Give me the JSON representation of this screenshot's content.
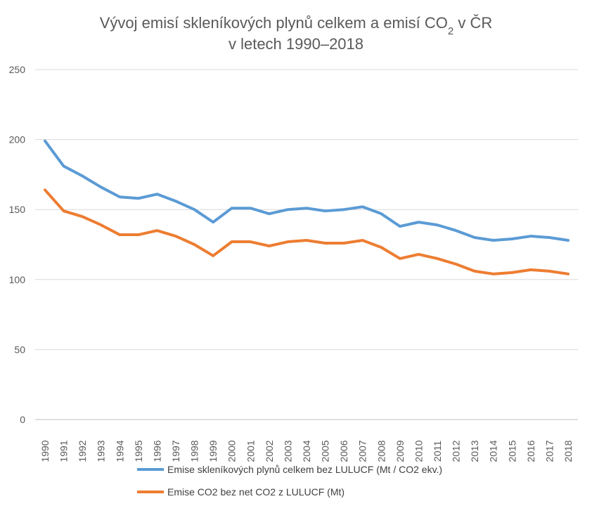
{
  "chart_data": {
    "type": "line",
    "title_line1_main": "Vývoj emisí skleníkových plynů celkem a emisí CO",
    "title_line1_sub": "2",
    "title_line1_end": " v ČR",
    "title_line2": "v letech 1990–2018",
    "categories": [
      "1990",
      "1991",
      "1992",
      "1993",
      "1994",
      "1995",
      "1996",
      "1997",
      "1998",
      "1999",
      "2000",
      "2001",
      "2002",
      "2003",
      "2004",
      "2005",
      "2006",
      "2007",
      "2008",
      "2009",
      "2010",
      "2011",
      "2012",
      "2013",
      "2014",
      "2015",
      "2016",
      "2017",
      "2018"
    ],
    "ylim": [
      0,
      250
    ],
    "yticks": [
      "0",
      "50",
      "100",
      "150",
      "200",
      "250"
    ],
    "grid": true,
    "legend_position": "bottom",
    "series": [
      {
        "name": "Emise skleníkových plynů celkem bez LULUCF (Mt / CO2 ekv.)",
        "color": "#5B9BD5",
        "values": [
          199,
          181,
          174,
          166,
          159,
          158,
          161,
          156,
          150,
          141,
          151,
          151,
          147,
          150,
          151,
          149,
          150,
          152,
          147,
          138,
          141,
          139,
          135,
          130,
          128,
          129,
          131,
          130,
          128
        ]
      },
      {
        "name": "Emise CO2 bez net CO2 z LULUCF (Mt)",
        "color": "#ED7D31",
        "values": [
          164,
          149,
          145,
          139,
          132,
          132,
          135,
          131,
          125,
          117,
          127,
          127,
          124,
          127,
          128,
          126,
          126,
          128,
          123,
          115,
          118,
          115,
          111,
          106,
          104,
          105,
          107,
          106,
          104
        ]
      }
    ]
  }
}
